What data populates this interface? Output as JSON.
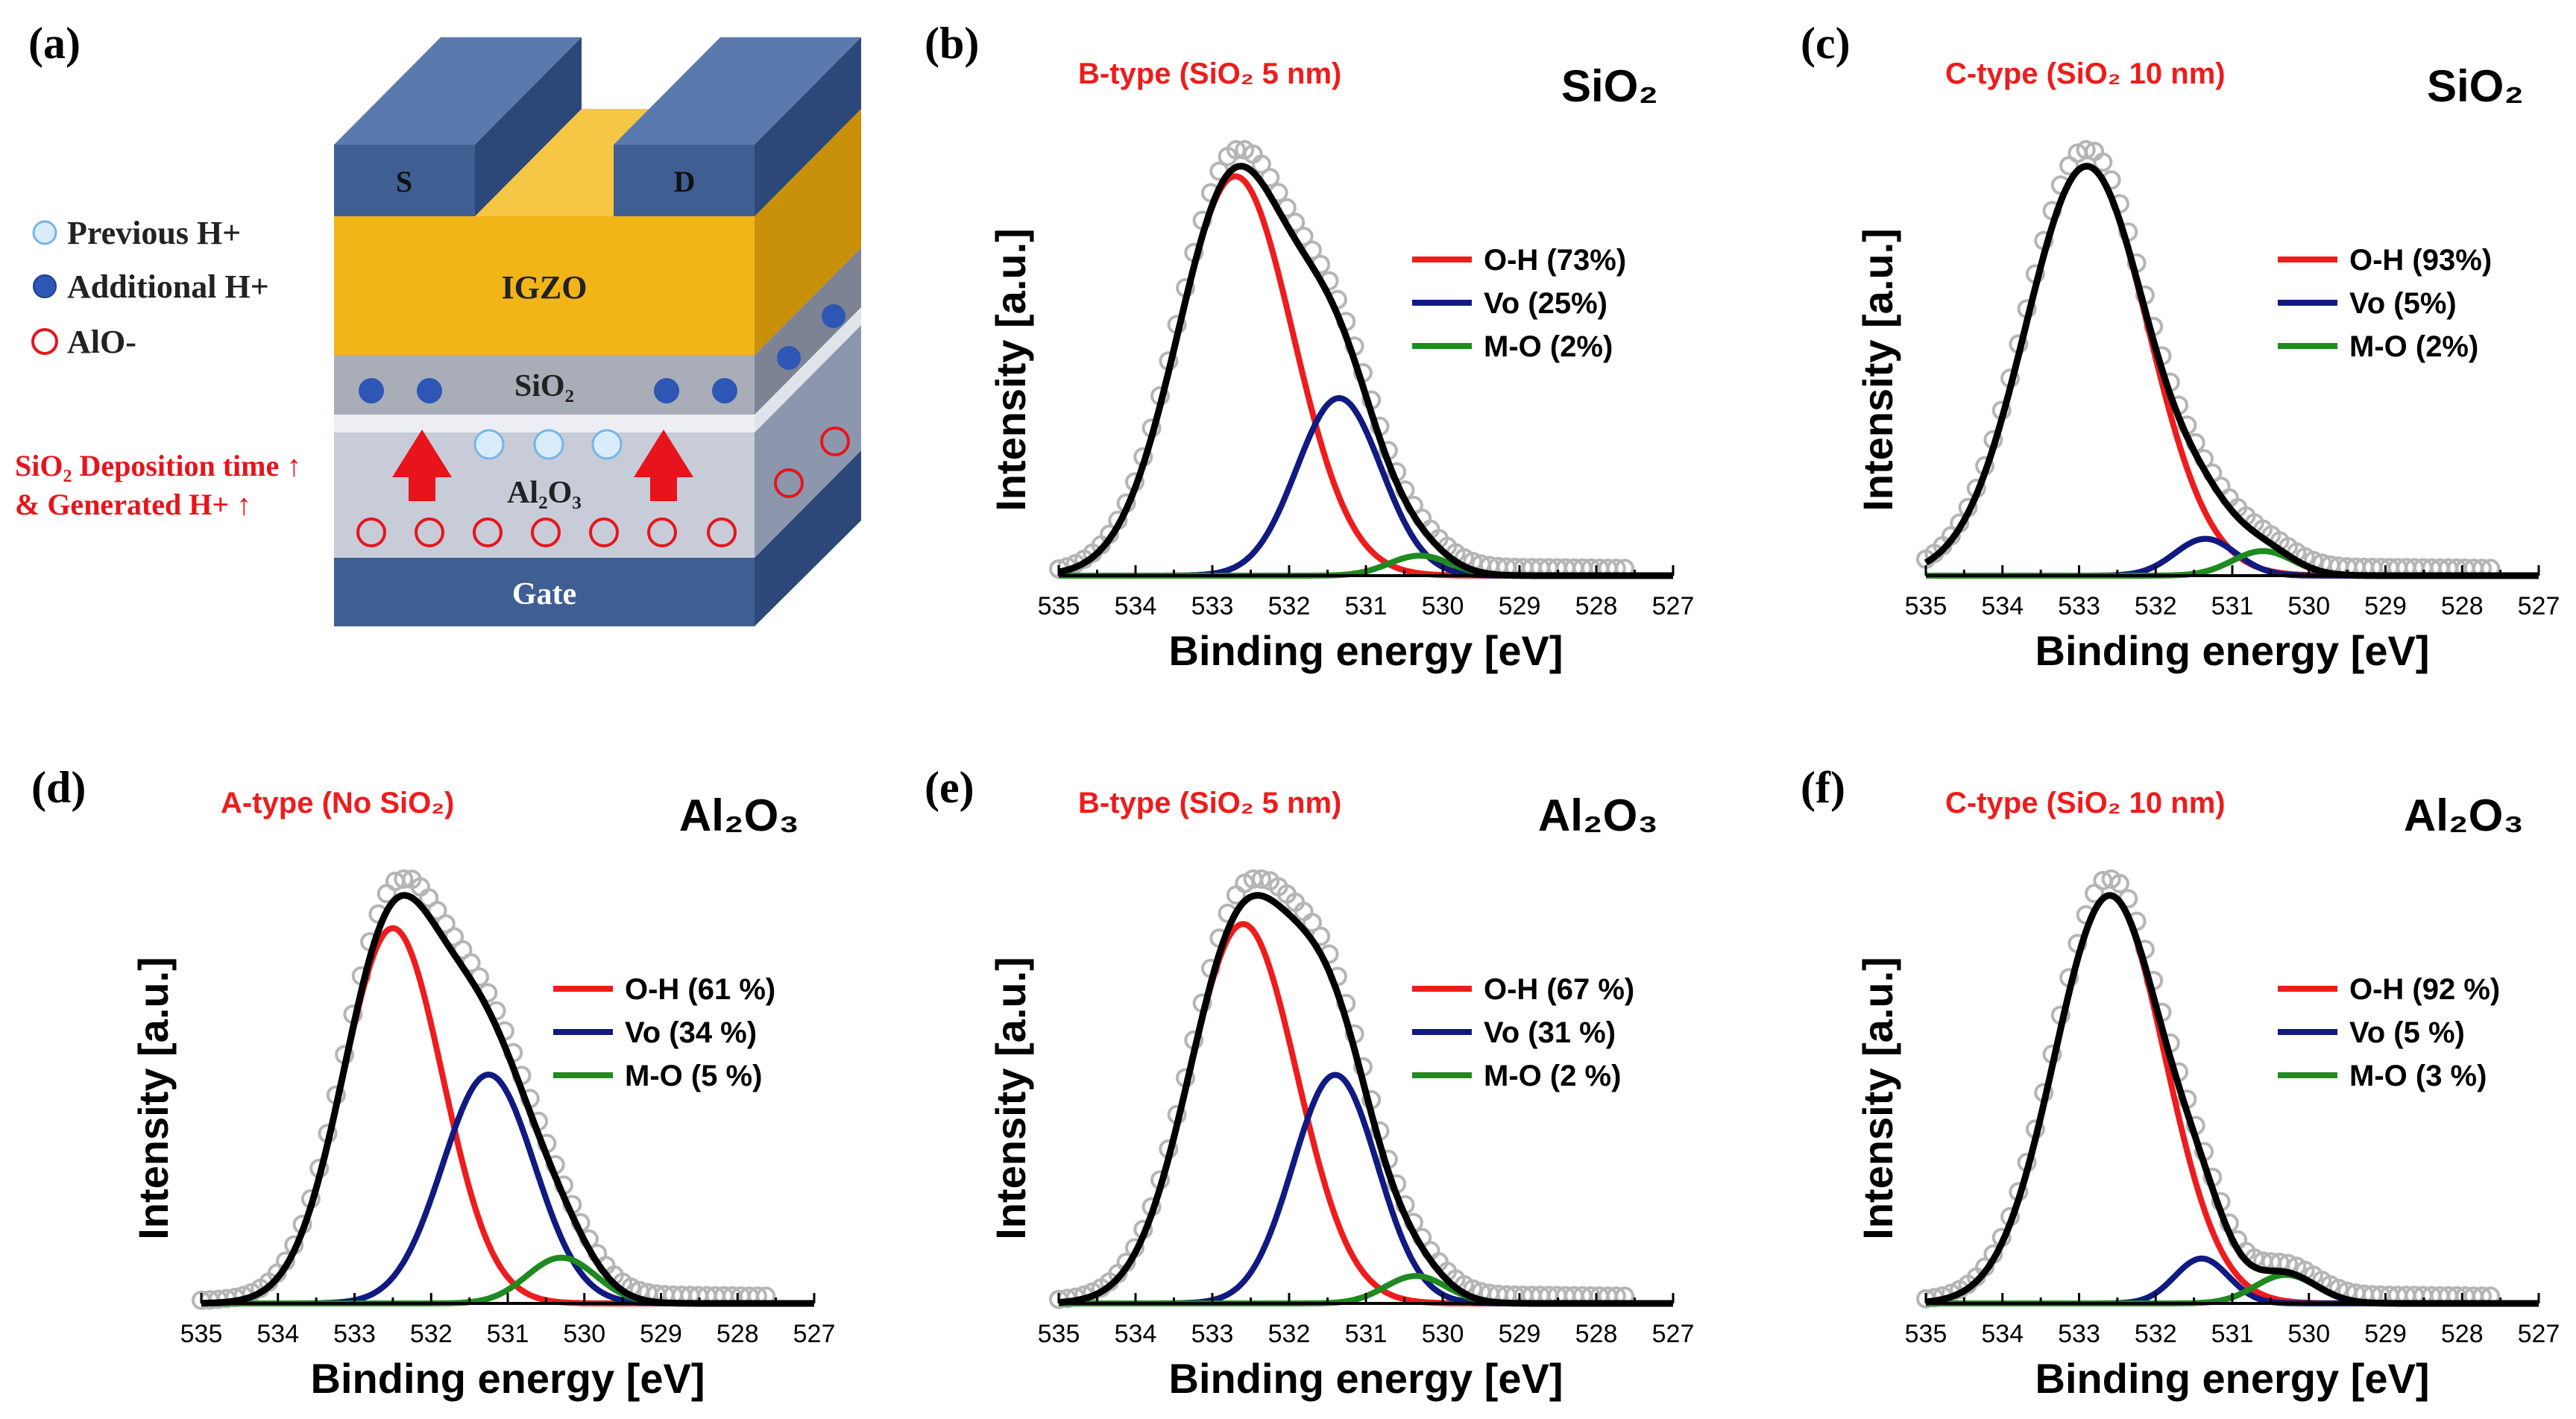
{
  "panel_a": {
    "letter": "(a)",
    "legend": [
      {
        "marker": "previous-h",
        "label": "Previous H+"
      },
      {
        "marker": "additional-h",
        "label": "Additional H+"
      },
      {
        "marker": "alo",
        "label": "AlO-"
      }
    ],
    "annotation_line1": "SiO₂ Deposition time ↑",
    "annotation_line2": "& Generated H+ ↑",
    "layers": {
      "source": "S",
      "drain": "D",
      "igzo": "IGZO",
      "sio2": "SiO₂",
      "al2o3": "Al₂O₃",
      "gate": "Gate"
    },
    "colors": {
      "electrode": "#3f5f93",
      "igzo": "#f2b517",
      "annotation": "#e8141b"
    }
  },
  "axis_common": {
    "xlabel": "Binding energy [eV]",
    "ylabel": "Intensity [a.u.]",
    "xticks": [
      "535",
      "534",
      "533",
      "532",
      "531",
      "530",
      "529",
      "528",
      "527"
    ]
  },
  "chart_data": [
    {
      "id": "b",
      "type": "line",
      "letter": "(b)",
      "sample": "B-type (SiO₂ 5 nm)",
      "layer": "SiO₂",
      "xlim": [
        535,
        527
      ],
      "xlabel": "Binding energy [eV]",
      "ylabel": "Intensity [a.u.]",
      "legend": [
        {
          "name": "O-H",
          "text": "O-H (73%)",
          "color": "#ee1c1c"
        },
        {
          "name": "Vo",
          "text": "Vo (25%)",
          "color": "#101a80"
        },
        {
          "name": "M-O",
          "text": "M-O (2%)",
          "color": "#1f8a1f"
        }
      ],
      "series": [
        {
          "name": "O-H",
          "center": 532.7,
          "width": 0.75,
          "amplitude": 0.9
        },
        {
          "name": "Vo",
          "center": 531.35,
          "width": 0.55,
          "amplitude": 0.4
        },
        {
          "name": "M-O",
          "center": 530.3,
          "width": 0.4,
          "amplitude": 0.045
        }
      ],
      "measured": {
        "offset": 0.02,
        "scale": 1.03
      }
    },
    {
      "id": "c",
      "type": "line",
      "letter": "(c)",
      "sample": "C-type (SiO₂ 10 nm)",
      "layer": "SiO₂",
      "xlim": [
        535,
        527
      ],
      "xlabel": "Binding energy [eV]",
      "ylabel": "Intensity [a.u.]",
      "legend": [
        {
          "name": "O-H",
          "text": "O-H (93%)",
          "color": "#ee1c1c"
        },
        {
          "name": "Vo",
          "text": "Vo (5%)",
          "color": "#101a80"
        },
        {
          "name": "M-O",
          "text": "M-O (2%)",
          "color": "#1f8a1f"
        }
      ],
      "series": [
        {
          "name": "O-H",
          "center": 532.9,
          "width": 0.8,
          "amplitude": 1.0
        },
        {
          "name": "Vo",
          "center": 531.35,
          "width": 0.4,
          "amplitude": 0.09
        },
        {
          "name": "M-O",
          "center": 530.6,
          "width": 0.4,
          "amplitude": 0.06
        }
      ],
      "measured": {
        "offset": 0.02,
        "scale": 1.03
      }
    },
    {
      "id": "d",
      "type": "line",
      "letter": "(d)",
      "sample": "A-type (No SiO₂)",
      "layer": "Al₂O₃",
      "xlim": [
        535,
        527
      ],
      "xlabel": "Binding energy [eV]",
      "ylabel": "Intensity [a.u.]",
      "legend": [
        {
          "name": "O-H",
          "text": "O-H (61 %)",
          "color": "#ee1c1c"
        },
        {
          "name": "Vo",
          "text": "Vo (34 %)",
          "color": "#101a80"
        },
        {
          "name": "M-O",
          "text": "M-O (5 %)",
          "color": "#1f8a1f"
        }
      ],
      "series": [
        {
          "name": "O-H",
          "center": 532.5,
          "width": 0.65,
          "amplitude": 0.82
        },
        {
          "name": "Vo",
          "center": 531.25,
          "width": 0.6,
          "amplitude": 0.5
        },
        {
          "name": "M-O",
          "center": 530.3,
          "width": 0.45,
          "amplitude": 0.1
        }
      ],
      "measured": {
        "offset": 0.02,
        "scale": 1.03
      }
    },
    {
      "id": "e",
      "type": "line",
      "letter": "(e)",
      "sample": "B-type (SiO₂ 5 nm)",
      "layer": "Al₂O₃",
      "xlim": [
        535,
        527
      ],
      "xlabel": "Binding energy [eV]",
      "ylabel": "Intensity [a.u.]",
      "legend": [
        {
          "name": "O-H",
          "text": "O-H (67 %)",
          "color": "#ee1c1c"
        },
        {
          "name": "Vo",
          "text": "Vo (31 %)",
          "color": "#101a80"
        },
        {
          "name": "M-O",
          "text": "M-O (2 %)",
          "color": "#1f8a1f"
        }
      ],
      "series": [
        {
          "name": "O-H",
          "center": 532.6,
          "width": 0.7,
          "amplitude": 0.83
        },
        {
          "name": "Vo",
          "center": 531.4,
          "width": 0.55,
          "amplitude": 0.5
        },
        {
          "name": "M-O",
          "center": 530.35,
          "width": 0.4,
          "amplitude": 0.06
        }
      ],
      "measured": {
        "offset": 0.02,
        "scale": 1.03
      }
    },
    {
      "id": "f",
      "type": "line",
      "letter": "(f)",
      "sample": "C-type (SiO₂ 10 nm)",
      "layer": "Al₂O₃",
      "xlim": [
        535,
        527
      ],
      "xlabel": "Binding energy [eV]",
      "ylabel": "Intensity [a.u.]",
      "legend": [
        {
          "name": "O-H",
          "text": "O-H (92 %)",
          "color": "#ee1c1c"
        },
        {
          "name": "Vo",
          "text": "Vo (5 %)",
          "color": "#101a80"
        },
        {
          "name": "M-O",
          "text": "M-O (3 %)",
          "color": "#1f8a1f"
        }
      ],
      "series": [
        {
          "name": "O-H",
          "center": 532.6,
          "width": 0.72,
          "amplitude": 1.0
        },
        {
          "name": "Vo",
          "center": 531.4,
          "width": 0.35,
          "amplitude": 0.11
        },
        {
          "name": "M-O",
          "center": 530.3,
          "width": 0.4,
          "amplitude": 0.07
        }
      ],
      "measured": {
        "offset": 0.02,
        "scale": 1.03
      }
    }
  ]
}
